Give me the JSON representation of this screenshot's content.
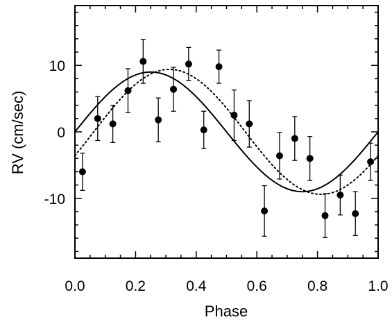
{
  "chart_data": {
    "type": "scatter",
    "title": "",
    "xlabel": "Phase",
    "ylabel": "RV (cm/sec)",
    "xlim": [
      0.0,
      1.0
    ],
    "ylim": [
      -19.0,
      19.0
    ],
    "xticks": [
      {
        "value": 0.0,
        "label": "0.0"
      },
      {
        "value": 0.2,
        "label": "0.2"
      },
      {
        "value": 0.4,
        "label": "0.4"
      },
      {
        "value": 0.6,
        "label": "0.6"
      },
      {
        "value": 0.8,
        "label": "0.8"
      },
      {
        "value": 1.0,
        "label": "1.0"
      }
    ],
    "yticks": [
      {
        "value": -10,
        "label": "-10"
      },
      {
        "value": 0,
        "label": "0"
      },
      {
        "value": 10,
        "label": "10"
      }
    ],
    "grid": false,
    "legend": "none",
    "series": [
      {
        "type": "scatter-errorbar",
        "x": [
          0.025,
          0.075,
          0.125,
          0.175,
          0.225,
          0.275,
          0.325,
          0.375,
          0.425,
          0.475,
          0.525,
          0.575,
          0.625,
          0.675,
          0.725,
          0.775,
          0.825,
          0.875,
          0.925,
          0.975
        ],
        "y": [
          -6.0,
          2.0,
          1.2,
          6.2,
          10.6,
          1.8,
          6.4,
          10.2,
          0.3,
          9.8,
          2.5,
          1.2,
          -11.9,
          -3.6,
          -1.0,
          -4.0,
          -12.6,
          -9.5,
          -12.3,
          -4.5
        ],
        "yerr": [
          2.8,
          3.3,
          2.8,
          3.3,
          3.3,
          3.3,
          3.3,
          2.5,
          2.8,
          2.5,
          3.8,
          3.5,
          3.8,
          3.5,
          3.3,
          3.3,
          3.3,
          3.0,
          3.3,
          2.8
        ]
      },
      {
        "type": "line",
        "style": "solid",
        "model": "sine",
        "amplitude": 9.0,
        "phase_offset": 0.0,
        "offset": 0.0
      },
      {
        "type": "line",
        "style": "dotted",
        "model": "sine",
        "amplitude": 9.4,
        "phase_offset": 0.062,
        "offset": 0.0
      }
    ]
  }
}
